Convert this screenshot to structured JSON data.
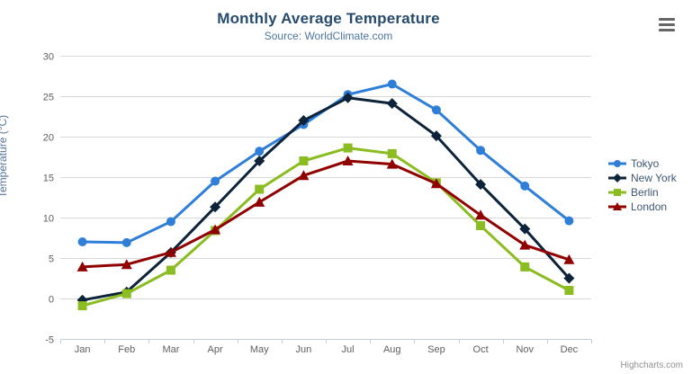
{
  "chart_data": {
    "type": "line",
    "title": "Monthly Average Temperature",
    "subtitle": "Source: WorldClimate.com",
    "categories": [
      "Jan",
      "Feb",
      "Mar",
      "Apr",
      "May",
      "Jun",
      "Jul",
      "Aug",
      "Sep",
      "Oct",
      "Nov",
      "Dec"
    ],
    "xlabel": "",
    "ylabel": "Temperature (°C)",
    "ylim": [
      -5,
      30
    ],
    "ytick_interval": 5,
    "grid": true,
    "legend_position": "right",
    "series": [
      {
        "name": "Tokyo",
        "color": "#2f7ed8",
        "marker": "circle",
        "values": [
          7.0,
          6.9,
          9.5,
          14.5,
          18.2,
          21.5,
          25.2,
          26.5,
          23.3,
          18.3,
          13.9,
          9.6
        ]
      },
      {
        "name": "New York",
        "color": "#0d233a",
        "marker": "diamond",
        "values": [
          -0.2,
          0.8,
          5.7,
          11.3,
          17.0,
          22.0,
          24.8,
          24.1,
          20.1,
          14.1,
          8.6,
          2.5
        ]
      },
      {
        "name": "Berlin",
        "color": "#8bbc21",
        "marker": "square",
        "values": [
          -0.9,
          0.6,
          3.5,
          8.4,
          13.5,
          17.0,
          18.6,
          17.9,
          14.3,
          9.0,
          3.9,
          1.0
        ]
      },
      {
        "name": "London",
        "color": "#910000",
        "marker": "triangle",
        "values": [
          3.9,
          4.2,
          5.7,
          8.5,
          11.9,
          15.2,
          17.0,
          16.6,
          14.2,
          10.3,
          6.6,
          4.8
        ]
      }
    ],
    "credits": "Highcharts.com"
  },
  "toolbar": {
    "context_menu_icon": "hamburger-icon"
  },
  "style_colors": {
    "title": "#274b6d",
    "subtitle": "#4d759e",
    "y_axis_title": "#55739c",
    "axis_labels": "#606060",
    "gridline": "#D8D8D8",
    "axis_line": "#C0D0E0",
    "legend_text": "#3E576F",
    "credits_text": "#909090",
    "menu_icon": "#666666"
  }
}
